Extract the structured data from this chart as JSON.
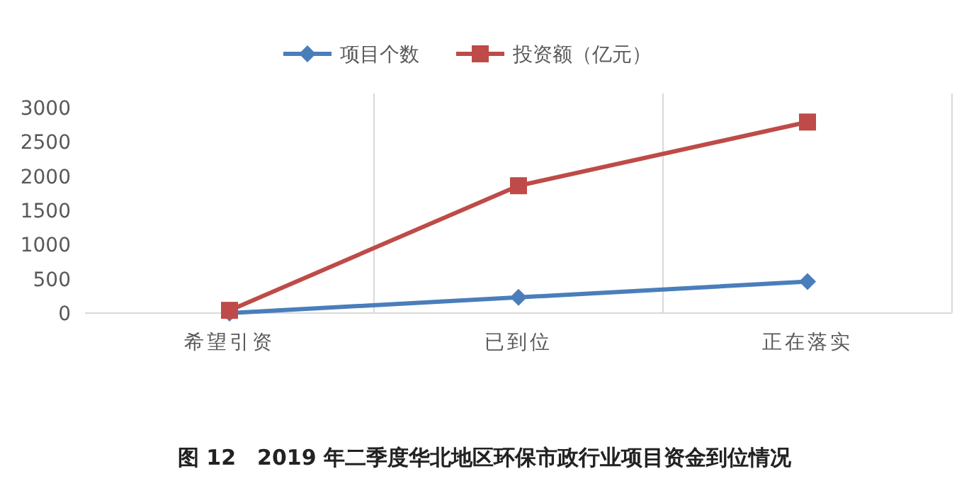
{
  "chart_data": {
    "type": "line",
    "title": "图 12　2019 年二季度华北地区环保市政行业项目资金到位情况",
    "categories": [
      "希望引资",
      "已到位",
      "正在落实"
    ],
    "series": [
      {
        "name": "项目个数",
        "color": "#4a7ebb",
        "marker": "diamond",
        "values": [
          0,
          230,
          460
        ]
      },
      {
        "name": "投资额（亿元）",
        "color": "#be4b48",
        "marker": "square",
        "values": [
          40,
          1860,
          2790
        ]
      }
    ],
    "ylim": [
      0,
      3000
    ],
    "yticks": [
      0,
      500,
      1000,
      1500,
      2000,
      2500,
      3000
    ],
    "grid": "x",
    "legend": "top",
    "line_style": "solid"
  }
}
